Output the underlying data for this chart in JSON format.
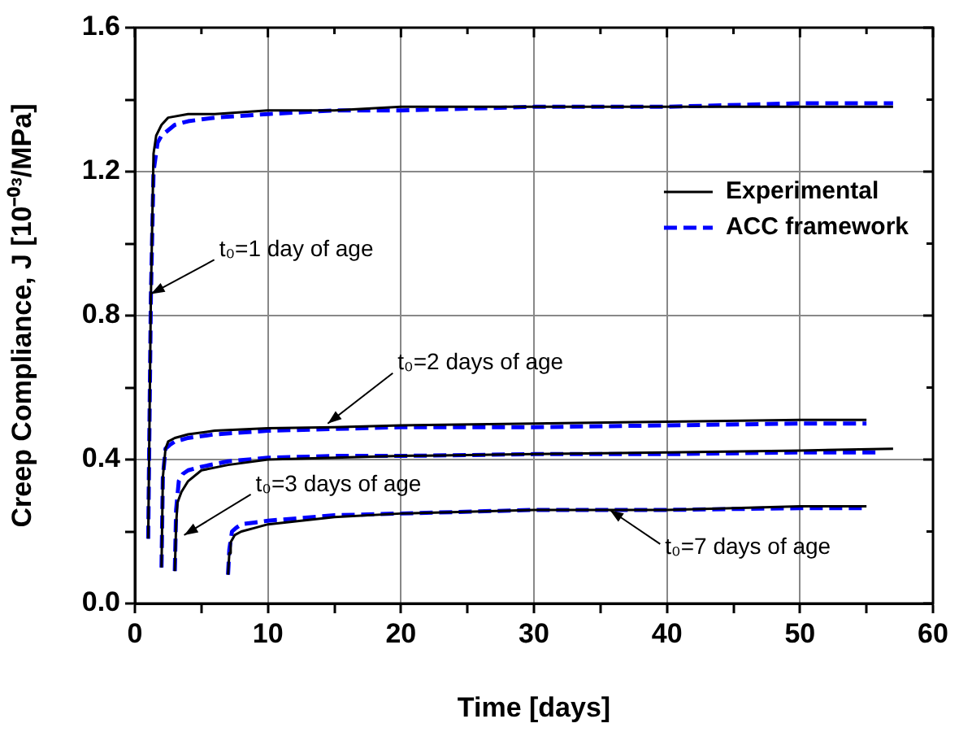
{
  "chart_data": {
    "type": "line",
    "xlabel": "Time [days]",
    "ylabel": "Creep Compliance, J [10⁻⁰³/MPa]",
    "xlim": [
      0,
      60
    ],
    "ylim": [
      0,
      1.6
    ],
    "xticks": [
      0,
      {
        "value": 5,
        "label": null
      },
      10,
      {
        "value": 15,
        "label": null
      },
      20,
      {
        "value": 25,
        "label": null
      },
      30,
      {
        "value": 35,
        "label": null
      },
      40,
      {
        "value": 45,
        "label": null
      },
      50,
      {
        "value": 55,
        "label": null
      },
      60
    ],
    "yticks": [
      {
        "value": 0,
        "label": "0.0"
      },
      {
        "value": 0.2,
        "label": null
      },
      {
        "value": 0.4,
        "label": "0.4"
      },
      {
        "value": 0.6,
        "label": null
      },
      {
        "value": 0.8,
        "label": "0.8"
      },
      {
        "value": 1.0,
        "label": null
      },
      {
        "value": 1.2,
        "label": "1.2"
      },
      {
        "value": 1.4,
        "label": null
      },
      {
        "value": 1.6,
        "label": "1.6"
      }
    ],
    "grid": true,
    "legend": "top right",
    "marker": "none",
    "series": [
      {
        "name": "Experimental",
        "color": "#000000",
        "line_style": "solid",
        "x": [
          1,
          1.2,
          1.4,
          1.6,
          2,
          2.5,
          4,
          6,
          10,
          15,
          20,
          30,
          40,
          50,
          57
        ],
        "values": [
          0.18,
          0.85,
          1.25,
          1.3,
          1.33,
          1.35,
          1.36,
          1.36,
          1.37,
          1.37,
          1.38,
          1.38,
          1.38,
          1.38,
          1.38
        ]
      },
      {
        "name": "ACC framework",
        "color": "#0000ff",
        "line_style": "dashed",
        "x": [
          1,
          1.2,
          1.4,
          1.7,
          2,
          3,
          4,
          6,
          10,
          15,
          20,
          30,
          40,
          50,
          57
        ],
        "values": [
          0.18,
          0.85,
          1.2,
          1.28,
          1.3,
          1.33,
          1.34,
          1.35,
          1.36,
          1.37,
          1.37,
          1.38,
          1.38,
          1.39,
          1.39
        ]
      },
      {
        "color": "#000000",
        "line_style": "solid",
        "x": [
          2,
          2.1,
          2.3,
          2.5,
          3,
          4,
          6,
          10,
          15,
          20,
          30,
          40,
          50,
          55
        ],
        "values": [
          0.1,
          0.35,
          0.43,
          0.45,
          0.46,
          0.47,
          0.48,
          0.487,
          0.49,
          0.495,
          0.5,
          0.505,
          0.51,
          0.51
        ]
      },
      {
        "color": "#0000ff",
        "line_style": "dashed",
        "x": [
          2,
          2.1,
          2.3,
          2.6,
          3,
          4,
          6,
          10,
          15,
          20,
          30,
          40,
          50,
          55
        ],
        "values": [
          0.1,
          0.35,
          0.43,
          0.44,
          0.45,
          0.46,
          0.47,
          0.48,
          0.485,
          0.49,
          0.49,
          0.495,
          0.5,
          0.5
        ]
      },
      {
        "color": "#000000",
        "line_style": "solid",
        "x": [
          3,
          3.1,
          3.2,
          3.5,
          4,
          5,
          7,
          10,
          15,
          20,
          30,
          40,
          50,
          57
        ],
        "values": [
          0.09,
          0.22,
          0.28,
          0.31,
          0.34,
          0.37,
          0.385,
          0.4,
          0.405,
          0.41,
          0.415,
          0.42,
          0.425,
          0.43
        ]
      },
      {
        "color": "#0000ff",
        "line_style": "dashed",
        "x": [
          3,
          3.1,
          3.3,
          3.6,
          4,
          5,
          7,
          10,
          15,
          20,
          30,
          40,
          50,
          56
        ],
        "values": [
          0.09,
          0.26,
          0.34,
          0.36,
          0.37,
          0.38,
          0.395,
          0.405,
          0.41,
          0.41,
          0.415,
          0.415,
          0.42,
          0.42
        ]
      },
      {
        "color": "#000000",
        "line_style": "solid",
        "x": [
          7,
          7.1,
          7.2,
          7.5,
          8,
          9,
          10,
          15,
          20,
          30,
          40,
          50,
          55
        ],
        "values": [
          0.08,
          0.14,
          0.17,
          0.19,
          0.2,
          0.21,
          0.22,
          0.24,
          0.25,
          0.26,
          0.26,
          0.27,
          0.27
        ]
      },
      {
        "color": "#0000ff",
        "line_style": "dashed",
        "x": [
          7,
          7.1,
          7.3,
          7.6,
          8,
          9,
          10,
          15,
          20,
          30,
          40,
          50,
          55
        ],
        "values": [
          0.08,
          0.15,
          0.2,
          0.21,
          0.22,
          0.225,
          0.23,
          0.245,
          0.25,
          0.26,
          0.26,
          0.265,
          0.265
        ]
      }
    ],
    "annotations": [
      {
        "text": "t₀=1 day of age",
        "x": 1.2,
        "y": 0.86
      },
      {
        "text": "t₀=2 days of age",
        "x": 14.5,
        "y": 0.5
      },
      {
        "text": "t₀=3 days of age",
        "x": 3.7,
        "y": 0.19
      },
      {
        "text": "t₀=7 days of age",
        "x": 35.7,
        "y": 0.26
      }
    ]
  }
}
